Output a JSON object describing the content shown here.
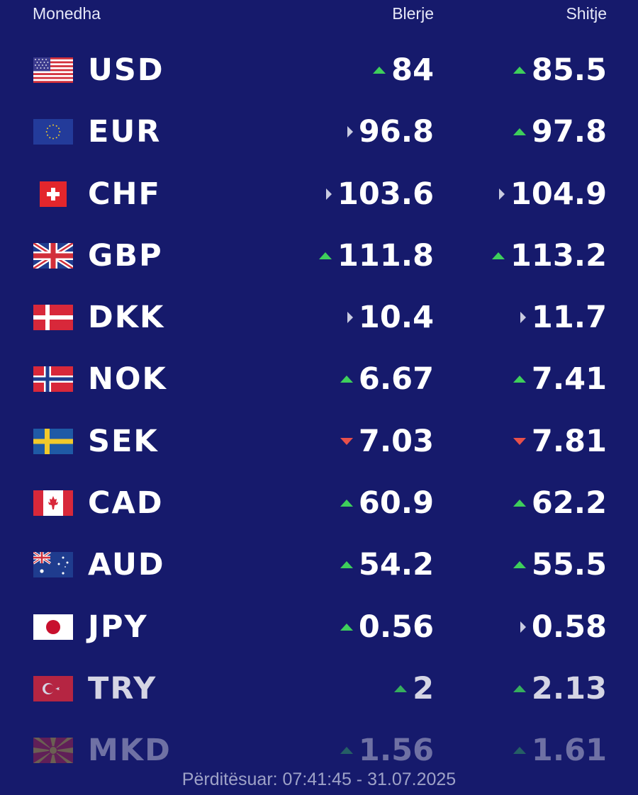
{
  "header": {
    "currency": "Monedha",
    "buy": "Blerje",
    "sell": "Shitje"
  },
  "colors": {
    "background": "#161a6c",
    "up": "#3ecf5b",
    "down": "#e8504a",
    "unchanged": "#c9cbe0"
  },
  "rates": [
    {
      "code": "USD",
      "flag": "usa-flag-icon",
      "buy": "84",
      "buy_trend": "up",
      "sell": "85.5",
      "sell_trend": "up"
    },
    {
      "code": "EUR",
      "flag": "eu-flag-icon",
      "buy": "96.8",
      "buy_trend": "same",
      "sell": "97.8",
      "sell_trend": "up"
    },
    {
      "code": "CHF",
      "flag": "switzerland-flag-icon",
      "buy": "103.6",
      "buy_trend": "same",
      "sell": "104.9",
      "sell_trend": "same"
    },
    {
      "code": "GBP",
      "flag": "uk-flag-icon",
      "buy": "111.8",
      "buy_trend": "up",
      "sell": "113.2",
      "sell_trend": "up"
    },
    {
      "code": "DKK",
      "flag": "denmark-flag-icon",
      "buy": "10.4",
      "buy_trend": "same",
      "sell": "11.7",
      "sell_trend": "same"
    },
    {
      "code": "NOK",
      "flag": "norway-flag-icon",
      "buy": "6.67",
      "buy_trend": "up",
      "sell": "7.41",
      "sell_trend": "up"
    },
    {
      "code": "SEK",
      "flag": "sweden-flag-icon",
      "buy": "7.03",
      "buy_trend": "down",
      "sell": "7.81",
      "sell_trend": "down"
    },
    {
      "code": "CAD",
      "flag": "canada-flag-icon",
      "buy": "60.9",
      "buy_trend": "up",
      "sell": "62.2",
      "sell_trend": "up"
    },
    {
      "code": "AUD",
      "flag": "australia-flag-icon",
      "buy": "54.2",
      "buy_trend": "up",
      "sell": "55.5",
      "sell_trend": "up"
    },
    {
      "code": "JPY",
      "flag": "japan-flag-icon",
      "buy": "0.56",
      "buy_trend": "up",
      "sell": "0.58",
      "sell_trend": "same"
    },
    {
      "code": "TRY",
      "flag": "turkey-flag-icon",
      "buy": "2",
      "buy_trend": "up",
      "sell": "2.13",
      "sell_trend": "up"
    },
    {
      "code": "MKD",
      "flag": "north-macedonia-flag-icon",
      "buy": "1.56",
      "buy_trend": "up",
      "sell": "1.61",
      "sell_trend": "up"
    }
  ],
  "footer": {
    "updated": "Përditësuar: 07:41:45 - 31.07.2025"
  }
}
